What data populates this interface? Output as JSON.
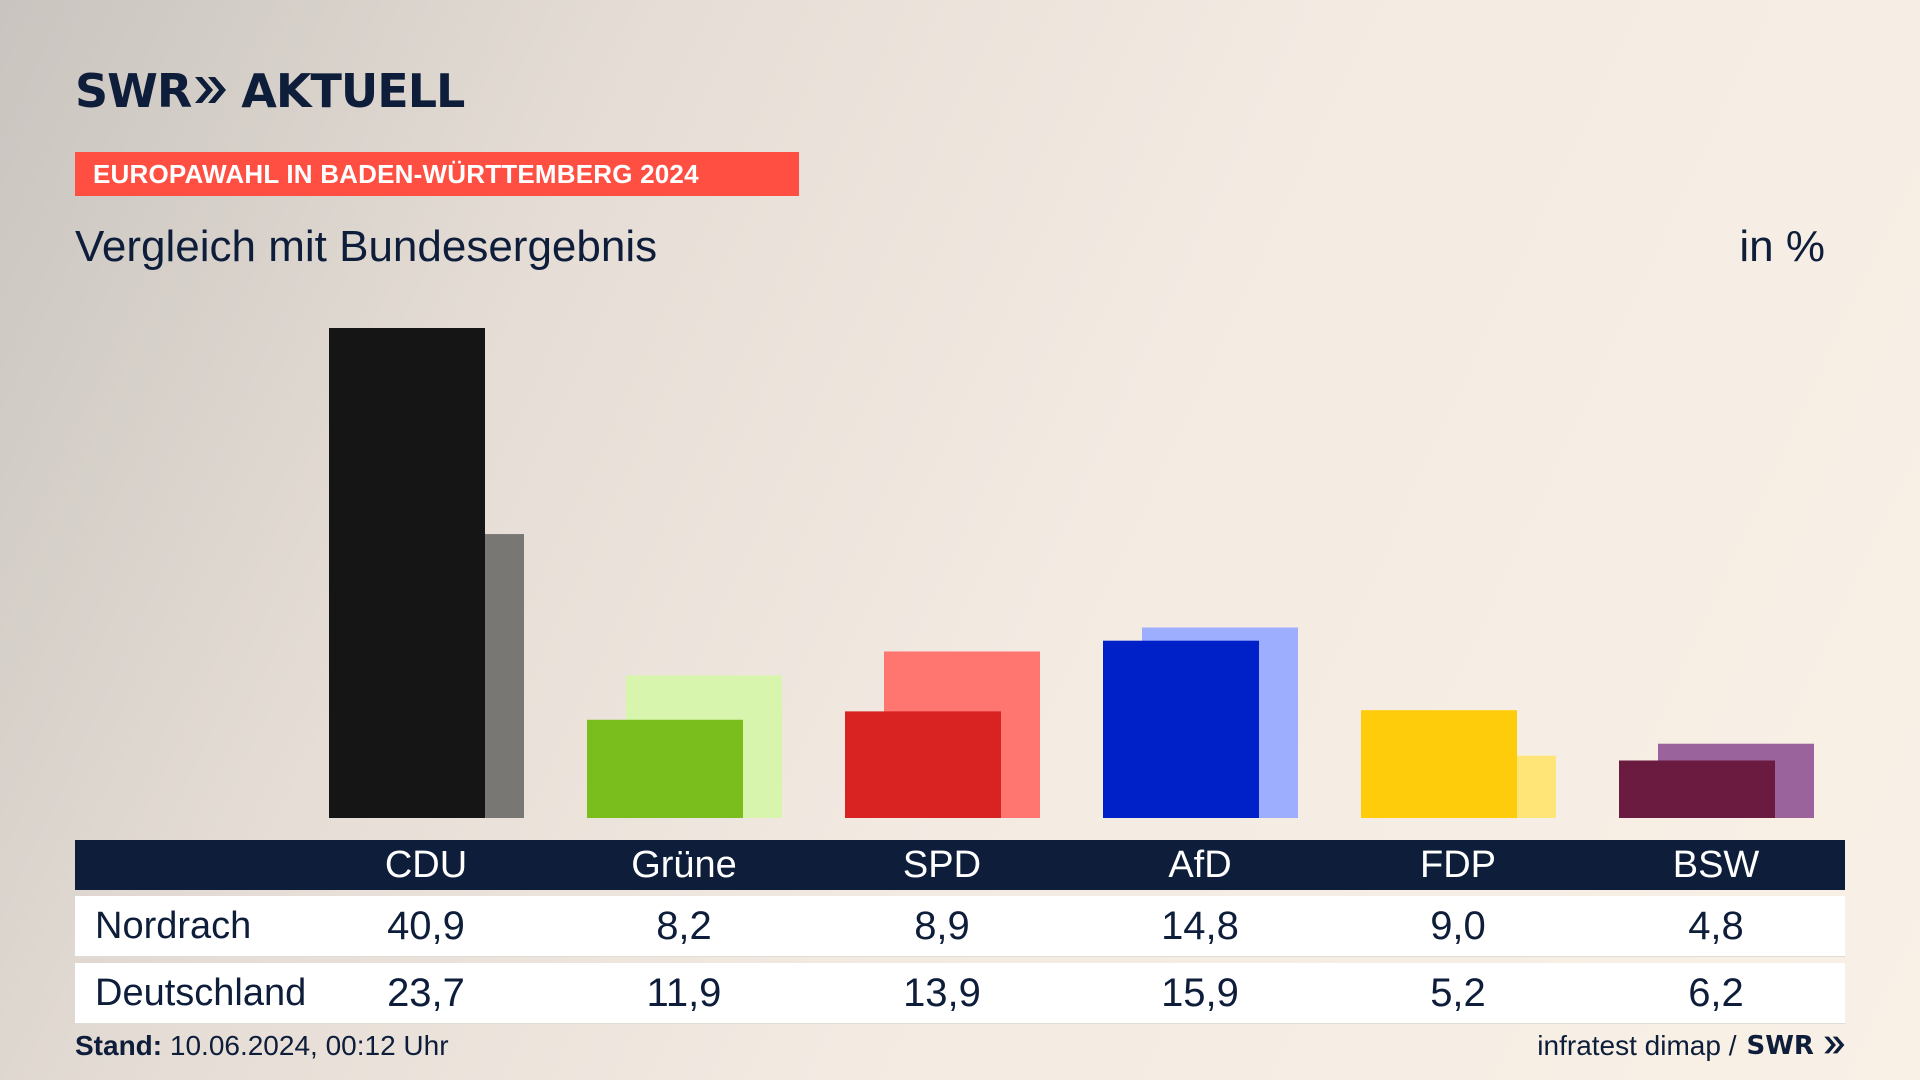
{
  "header": {
    "logo_brand": "SWR",
    "logo_product": "AKTUELL",
    "banner": "EUROPAWAHL IN BADEN-WÜRTTEMBERG 2024",
    "subtitle": "Vergleich mit Bundesergebnis",
    "unit": "in %"
  },
  "footer": {
    "stand_label": "Stand:",
    "stand_value": " 10.06.2024, 00:12 Uhr",
    "source": "infratest dimap /",
    "source_brand": "SWR"
  },
  "colors": {
    "navy": "#0d1d3a",
    "banner_red": "#ff4f42"
  },
  "chart_data": {
    "type": "bar",
    "title": "Vergleich mit Bundesergebnis",
    "unit": "in %",
    "categories": [
      "CDU",
      "Grüne",
      "SPD",
      "AfD",
      "FDP",
      "BSW"
    ],
    "series": [
      {
        "name": "Nordrach",
        "values": [
          40.9,
          8.2,
          8.9,
          14.8,
          9.0,
          4.8
        ],
        "labels": [
          "40,9",
          "8,2",
          "8,9",
          "14,8",
          "9,0",
          "4,8"
        ],
        "colors": [
          "#151515",
          "#7abe1e",
          "#d92222",
          "#0021c7",
          "#ffcc0c",
          "#6b1a40"
        ]
      },
      {
        "name": "Deutschland",
        "values": [
          23.7,
          11.9,
          13.9,
          15.9,
          5.2,
          6.2
        ],
        "labels": [
          "23,7",
          "11,9",
          "13,9",
          "15,9",
          "5,2",
          "6,2"
        ],
        "colors": [
          "#787774",
          "#d7f5ad",
          "#ff7570",
          "#9daeff",
          "#ffe577",
          "#9b639b"
        ]
      }
    ],
    "ylim": [
      0,
      40.9
    ],
    "grid": false,
    "legend": "none"
  }
}
